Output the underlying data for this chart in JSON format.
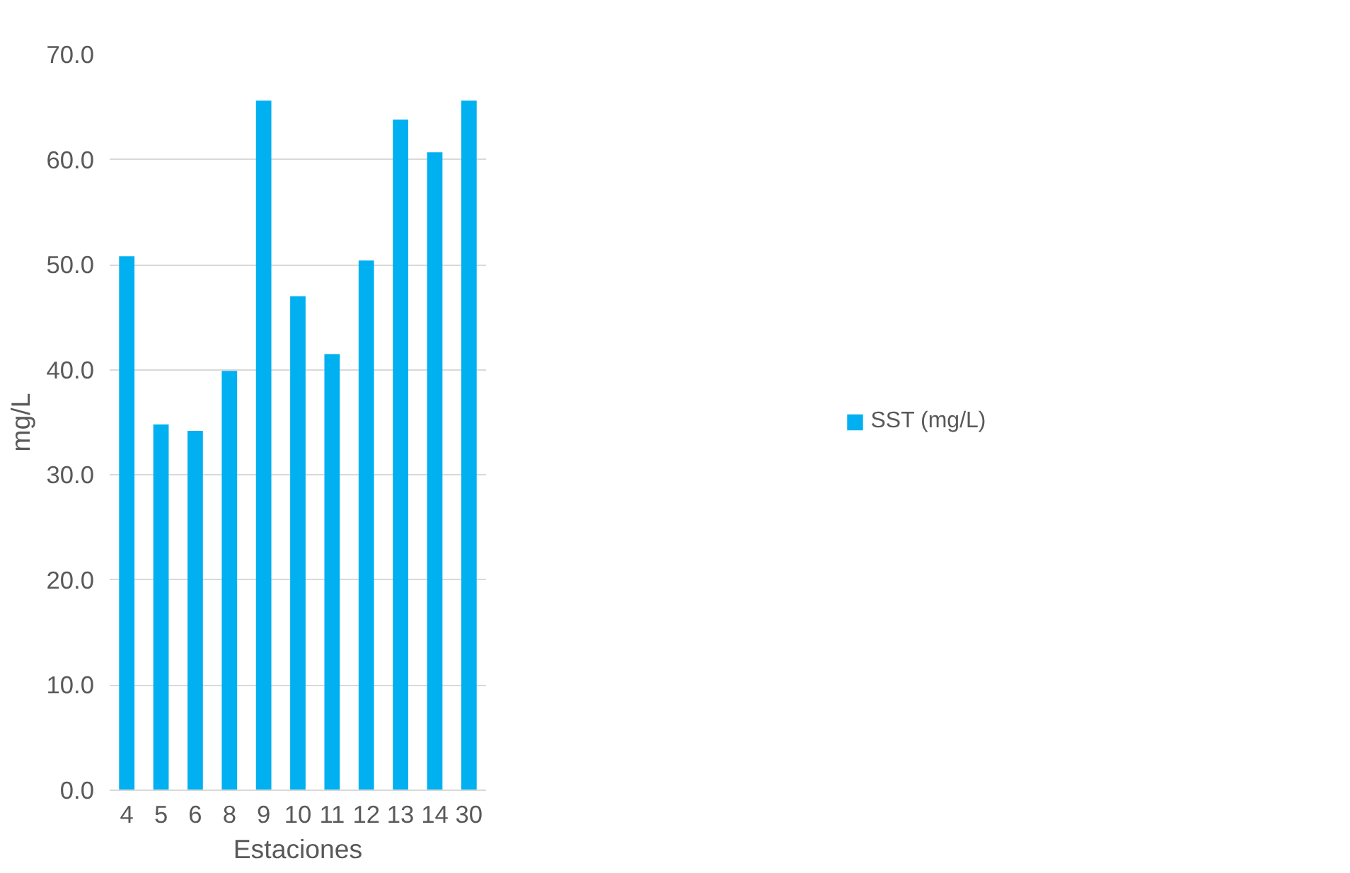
{
  "chart_data": {
    "type": "bar",
    "xlabel": "Estaciones",
    "ylabel": "mg/L",
    "categories": [
      "4",
      "5",
      "6",
      "8",
      "9",
      "10",
      "11",
      "12",
      "13",
      "14",
      "30"
    ],
    "series": [
      {
        "name": "SST (mg/L)",
        "color": "#00b0f0",
        "values": [
          50.8,
          34.8,
          34.2,
          39.9,
          65.6,
          47.0,
          41.5,
          50.4,
          63.8,
          60.7,
          65.6
        ]
      }
    ],
    "ylim": [
      0,
      70
    ],
    "yticks": [
      {
        "value": 0,
        "label": "0.0"
      },
      {
        "value": 10,
        "label": "10.0"
      },
      {
        "value": 20,
        "label": "20.0"
      },
      {
        "value": 30,
        "label": "30.0"
      },
      {
        "value": 40,
        "label": "40.0"
      },
      {
        "value": 50,
        "label": "50.0"
      },
      {
        "value": 60,
        "label": "60.0"
      },
      {
        "value": 70,
        "label": "70.0"
      }
    ],
    "grid": "y",
    "legend": "right"
  }
}
